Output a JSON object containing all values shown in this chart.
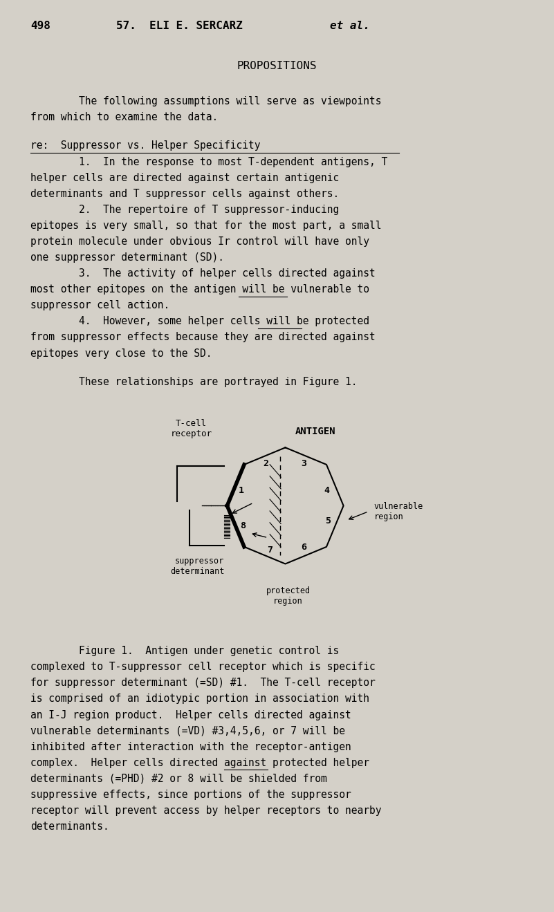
{
  "bg_color": "#d4d0c8",
  "text_color": "#000000",
  "page_number": "498",
  "chapter_bold": "57.  ELI E. SERCARZ ",
  "chapter_italic": "et al.",
  "title": "PROPOSITIONS",
  "para1_line1": "        The following assumptions will serve as viewpoints",
  "para1_line2": "from which to examine the data.",
  "section_heading": "re:  Suppressor vs. Helper Specificity",
  "item1_line1": "        1.  In the response to most T-dependent antigens, T",
  "item1_line2": "helper cells are directed against certain antigenic",
  "item1_line3": "determinants and T suppressor cells against others.",
  "item2_line1": "        2.  The repertoire of T suppressor-inducing",
  "item2_line2": "epitopes is very small, so that for the most part, a small",
  "item2_line3": "protein molecule under obvious Ir control will have only",
  "item2_line4": "one suppressor determinant (SD).",
  "item3_line1": "        3.  The activity of helper cells directed against",
  "item3_line2_pre": "most other epitopes on the antigen will be ",
  "item3_line2_under": "vulnerable",
  "item3_line2_post": " to",
  "item3_line3": "suppressor cell action.",
  "item4_line1_pre": "        4.  However, some helper cells will be ",
  "item4_line1_under": "protected",
  "item4_line2": "from suppressor effects because they are directed against",
  "item4_line3": "epitopes very close to the SD.",
  "para2": "        These relationships are portrayed in Figure 1.",
  "cap_line0": "        Figure 1.  Antigen under genetic control is",
  "cap_line1": "complexed to T-suppressor cell receptor which is specific",
  "cap_line2": "for suppressor determinant (=SD) #1.  The T-cell receptor",
  "cap_line3": "is comprised of an idiotypic portion in association with",
  "cap_line4": "an I-J region product.  Helper cells directed against",
  "cap_line5": "vulnerable determinants (=VD) #3,4,5,6, or 7 will be",
  "cap_line6": "inhibited after interaction with the receptor-antigen",
  "cap_line7_pre": "complex.  Helper cells directed against ",
  "cap_line7_under": "protected",
  "cap_line7_post": " helper",
  "cap_line8": "determinants (=PHD) #2 or 8 will be shielded from",
  "cap_line9": "suppressive effects, since portions of the suppressor",
  "cap_line10": "receptor will prevent access by helper receptors to nearby",
  "cap_line11": "determinants.",
  "font_family": "monospace",
  "font_size_body": 10.5,
  "font_size_header": 11.5,
  "font_size_title": 11.5,
  "lh": 0.0175
}
